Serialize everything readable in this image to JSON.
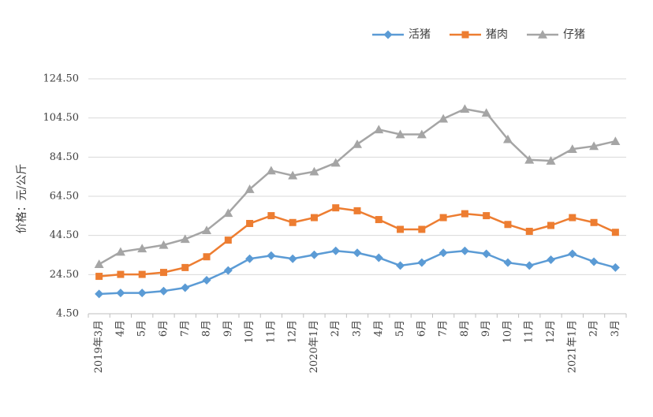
{
  "chart_data": {
    "type": "line",
    "title": "",
    "xlabel": "",
    "ylabel": "价格：元/公斤",
    "ylim": [
      4.5,
      124.5
    ],
    "yticks": [
      "124.50",
      "104.50",
      "84.50",
      "64.50",
      "44.50",
      "24.50",
      "4.50"
    ],
    "ytick_values": [
      124.5,
      104.5,
      84.5,
      64.5,
      44.5,
      24.5,
      4.5
    ],
    "grid": true,
    "legend_position": "top-right",
    "categories": [
      "2019年3月",
      "4月",
      "5月",
      "6月",
      "7月",
      "8月",
      "9月",
      "10月",
      "11月",
      "12月",
      "2020年1月",
      "2月",
      "3月",
      "4月",
      "5月",
      "6月",
      "7月",
      "8月",
      "9月",
      "10月",
      "11月",
      "12月",
      "2021年1月",
      "2月",
      "3月"
    ],
    "series": [
      {
        "name": "活猪",
        "color": "#5B9BD5",
        "marker": "diamond",
        "values": [
          14.6,
          15.1,
          15.1,
          16.1,
          17.8,
          21.6,
          26.6,
          32.6,
          34.2,
          32.6,
          34.6,
          36.6,
          35.6,
          33.1,
          29.1,
          30.6,
          35.6,
          36.6,
          35.1,
          30.6,
          29.1,
          32.1,
          35.1,
          31.1,
          28.1
        ]
      },
      {
        "name": "猪肉",
        "color": "#ED7D31",
        "marker": "square",
        "values": [
          23.6,
          24.6,
          24.6,
          25.6,
          28.1,
          33.6,
          42.1,
          50.6,
          54.6,
          51.1,
          53.6,
          58.6,
          57.1,
          52.6,
          47.6,
          47.6,
          53.6,
          55.6,
          54.6,
          50.1,
          46.6,
          49.6,
          53.6,
          51.1,
          46.1
        ]
      },
      {
        "name": "仔猪",
        "color": "#A5A5A5",
        "marker": "triangle",
        "values": [
          29.8,
          36.1,
          37.8,
          39.6,
          42.6,
          47.1,
          55.9,
          68.1,
          77.6,
          75.1,
          77.1,
          81.6,
          91.1,
          98.6,
          96.1,
          96.1,
          104.1,
          109.1,
          107.1,
          93.6,
          83.1,
          82.6,
          88.6,
          90.1,
          92.6
        ]
      }
    ]
  }
}
